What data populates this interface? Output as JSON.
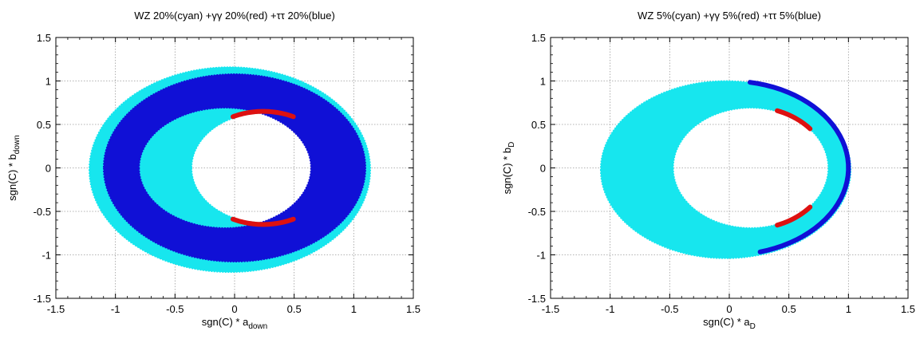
{
  "colors": {
    "cyan": "#17e6ee",
    "blue": "#1010d6",
    "red": "#dd1111",
    "grid": "#9a9a9a",
    "frame": "#000000"
  },
  "chart_data": [
    {
      "type": "scatter",
      "title": "WZ 20%(cyan) +γγ 20%(red) +ττ 20%(blue)",
      "xlabel": {
        "base": "sgn(C) * a",
        "sub": "down"
      },
      "ylabel": {
        "base": "sgn(C) * b",
        "sub": "down"
      },
      "xlim": [
        -1.5,
        1.5
      ],
      "ylim": [
        -1.5,
        1.5
      ],
      "xticks": [
        "-1.5",
        "-1",
        "-0.5",
        "0",
        "0.5",
        "1",
        "1.5"
      ],
      "yticks": [
        "1.5",
        "1",
        "0.5",
        "0",
        "-0.5",
        "-1",
        "-1.5"
      ],
      "grid": true,
      "series": [
        {
          "name": "WZ 20%",
          "color": "cyan",
          "region": {
            "outer": {
              "center": [
                -0.04,
                -0.02
              ],
              "radii": [
                1.18,
                1.18
              ]
            },
            "inner": {
              "center": [
                0.24,
                0.0
              ],
              "radii": [
                0.6,
                0.63
              ]
            }
          }
        },
        {
          "name": "ττ 20%",
          "color": "blue",
          "region": {
            "outer": {
              "center": [
                0.0,
                0.0
              ],
              "radii": [
                1.1,
                1.08
              ]
            },
            "inner": {
              "center": [
                -0.08,
                0.0
              ],
              "radii": [
                0.72,
                0.69
              ]
            }
          }
        },
        {
          "name": "γγ 20%",
          "color": "red",
          "arcs": [
            {
              "center": [
                0.24,
                0.0
              ],
              "radii": [
                0.6,
                0.65
              ],
              "theta_deg": [
                65,
                115
              ]
            },
            {
              "center": [
                0.24,
                0.0
              ],
              "radii": [
                0.6,
                0.65
              ],
              "theta_deg": [
                245,
                295
              ]
            }
          ]
        }
      ]
    },
    {
      "type": "scatter",
      "title": "WZ 5%(cyan) +γγ 5%(red) +ττ 5%(blue)",
      "xlabel": {
        "base": "sgn(C) * a",
        "sub": "D"
      },
      "ylabel": {
        "base": "sgn(C) * b",
        "sub": "D"
      },
      "xlim": [
        -1.5,
        1.5
      ],
      "ylim": [
        -1.5,
        1.5
      ],
      "xticks": [
        "-1.5",
        "-1",
        "-0.5",
        "0",
        "0.5",
        "1",
        "1.5"
      ],
      "yticks": [
        "1.5",
        "1",
        "0.5",
        "0",
        "-0.5",
        "-1",
        "-1.5"
      ],
      "grid": true,
      "series": [
        {
          "name": "WZ 5%",
          "color": "cyan",
          "region": {
            "outer": {
              "center": [
                -0.03,
                -0.02
              ],
              "radii": [
                1.05,
                1.02
              ]
            },
            "inner": {
              "center": [
                0.18,
                0.0
              ],
              "radii": [
                0.65,
                0.69
              ]
            }
          }
        },
        {
          "name": "ττ 5%",
          "color": "blue",
          "arcs": [
            {
              "center": [
                0.0,
                0.0
              ],
              "radii": [
                1.0,
                1.0
              ],
              "theta_deg": [
                -75,
                80
              ]
            }
          ]
        },
        {
          "name": "γγ 5%",
          "color": "red",
          "arcs": [
            {
              "center": [
                0.18,
                0.0
              ],
              "radii": [
                0.65,
                0.7
              ],
              "theta_deg": [
                40,
                70
              ]
            },
            {
              "center": [
                0.18,
                0.0
              ],
              "radii": [
                0.65,
                0.7
              ],
              "theta_deg": [
                -70,
                -40
              ]
            }
          ]
        }
      ]
    }
  ]
}
